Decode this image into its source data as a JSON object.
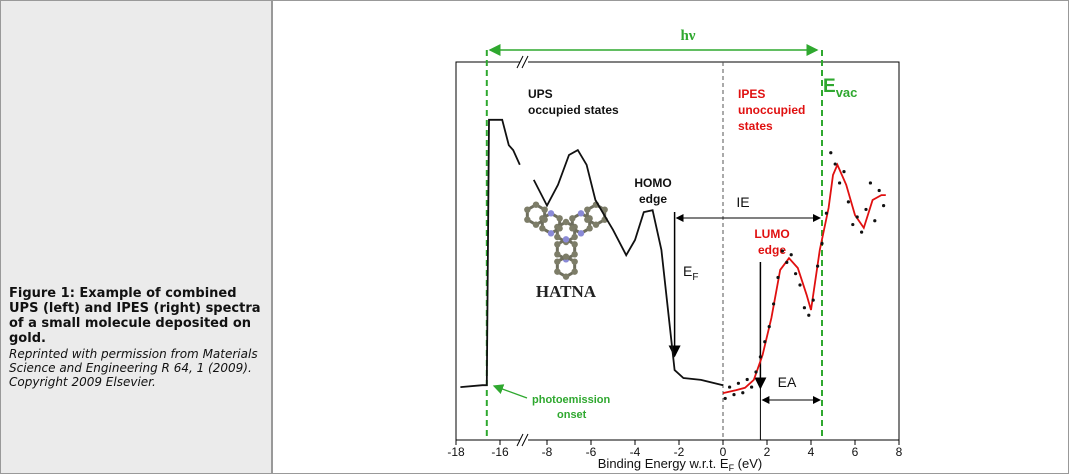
{
  "caption": {
    "title": "Figure 1: Example of combined UPS (left) and IPES (right) spectra of a small molecule deposited on gold.",
    "credit": "Reprinted with permission from Materials Science and Engineering R 64, 1 (2009). Copyright 2009 Elsevier."
  },
  "chart_data": {
    "type": "line",
    "x_label": [
      "Binding Energy w.r.t. E",
      "F",
      " (eV)"
    ],
    "xlim": [
      -18,
      8
    ],
    "x_break": [
      -15,
      -9
    ],
    "xticks": [
      -18,
      -16,
      -8,
      -6,
      -4,
      -2,
      0,
      2,
      4,
      6,
      8
    ],
    "ylim": [
      0,
      100
    ],
    "markers": {
      "onset": -16.6,
      "homo": -2.2,
      "ef": 0,
      "lumo": 1.7,
      "vac": 4.5
    },
    "annotations": {
      "photon": "hν",
      "vac": {
        "text": "E",
        "sub": "vac"
      },
      "ups": [
        "UPS",
        "occupied states"
      ],
      "ipes": [
        "IPES",
        "unoccupied",
        "states"
      ],
      "homo": [
        "HOMO",
        "edge"
      ],
      "lumo": [
        "LUMO",
        "edge"
      ],
      "ie": "IE",
      "ea": "EA",
      "ef": {
        "text": "E",
        "sub": "F"
      },
      "onset": [
        "photoemission",
        "onset"
      ],
      "molecule": "HATNA"
    },
    "series": [
      {
        "color": "#111111",
        "style": "line",
        "x": [
          -17.8,
          -16.8,
          -16.6,
          -16.5,
          -15.9,
          -15.6,
          -15.4,
          -15.1,
          null,
          -8.6,
          -8,
          -7.5,
          -7,
          -6.6,
          -6.2,
          -5.8,
          -5.4,
          -5,
          -4.4,
          -4,
          -3.6,
          -3.2,
          -2.8,
          -2.4,
          -2.2,
          -1.8,
          -1,
          0
        ],
        "values": [
          14,
          14.5,
          14.5,
          84.7,
          84.7,
          78,
          76.7,
          72.8,
          null,
          68.8,
          62,
          67.5,
          75.4,
          76.7,
          72.8,
          63.5,
          59.5,
          55.6,
          48.9,
          52.9,
          60.3,
          60.8,
          50.3,
          29.1,
          18.5,
          16.4,
          15.9,
          14.5
        ]
      },
      {
        "color": "#e01010",
        "style": "line",
        "x": [
          0,
          0.6,
          1,
          1.4,
          1.8,
          2.2,
          2.6,
          3,
          3.4,
          3.8,
          4,
          4.4,
          4.8,
          5,
          5.2,
          5.6,
          6,
          6.4,
          6.8,
          7.2,
          7.4
        ],
        "values": [
          12.4,
          13.2,
          13.8,
          15.9,
          22.5,
          32.3,
          45,
          48.1,
          45.5,
          38.4,
          34.4,
          50.3,
          61.4,
          70.1,
          72.8,
          67.5,
          59.5,
          56.1,
          63.5,
          64.8,
          64.8
        ]
      },
      {
        "color": "#111111",
        "style": "dots",
        "x": [
          0.1,
          0.3,
          0.5,
          0.7,
          0.9,
          1.1,
          1.3,
          1.5,
          1.7,
          1.9,
          2.1,
          2.3,
          2.5,
          2.7,
          2.9,
          3.1,
          3.3,
          3.5,
          3.7,
          3.9,
          4.1,
          4.3,
          4.5,
          4.7,
          4.9,
          5.1,
          5.3,
          5.5,
          5.7,
          5.9,
          6.1,
          6.3,
          6.5,
          6.7,
          6.9,
          7.1,
          7.3
        ],
        "values": [
          11,
          14,
          12,
          15,
          12.5,
          16,
          14,
          18,
          22,
          26,
          30,
          36,
          43,
          50,
          47,
          49,
          44,
          41,
          35,
          33,
          37,
          46,
          52,
          60,
          76,
          73,
          68,
          71,
          63,
          57,
          59,
          55,
          61,
          68,
          58,
          66,
          62
        ]
      }
    ]
  }
}
